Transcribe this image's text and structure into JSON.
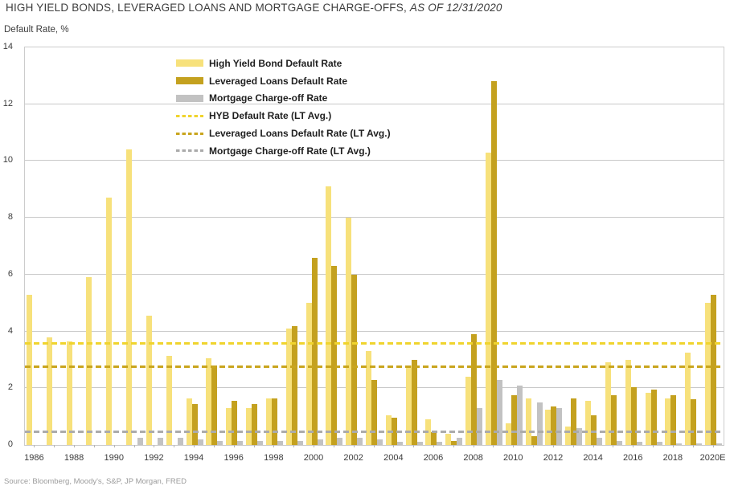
{
  "header": {
    "title_main": "HIGH YIELD BONDS, LEVERAGED LOANS AND MORTGAGE CHARGE-OFFS, ",
    "title_asof": "AS OF 12/31/2020"
  },
  "footer": {
    "source": "Source: Bloomberg, Moody's, S&P, JP Morgan, FRED"
  },
  "chart_data": {
    "type": "bar",
    "title": "HIGH YIELD BONDS, LEVERAGED LOANS AND MORTGAGE CHARGE-OFFS, AS OF 12/31/2020",
    "y_axis_title": "Default Rate, %",
    "ylim": [
      0,
      14
    ],
    "y_ticks": [
      0,
      2,
      4,
      6,
      8,
      10,
      12,
      14
    ],
    "grid": "horizontal",
    "legend_position": "top-left-inside",
    "x_tick_step": 2,
    "categories": [
      "1986",
      "1987",
      "1988",
      "1989",
      "1990",
      "1991",
      "1992",
      "1993",
      "1994",
      "1995",
      "1996",
      "1997",
      "1998",
      "1999",
      "2000",
      "2001",
      "2002",
      "2003",
      "2004",
      "2005",
      "2006",
      "2007",
      "2008",
      "2009",
      "2010",
      "2011",
      "2012",
      "2013",
      "2014",
      "2015",
      "2016",
      "2017",
      "2018",
      "2019",
      "2020E"
    ],
    "series": [
      {
        "name": "High Yield Bond Default Rate",
        "color": "#F7E17B",
        "values": [
          5.3,
          3.8,
          3.65,
          5.9,
          8.7,
          10.4,
          4.55,
          3.15,
          1.65,
          3.05,
          1.3,
          1.3,
          1.65,
          4.1,
          5.0,
          9.1,
          8.0,
          3.3,
          1.05,
          2.8,
          0.9,
          0.4,
          2.4,
          10.3,
          0.75,
          1.65,
          1.25,
          0.65,
          1.55,
          2.9,
          3.0,
          1.85,
          1.65,
          3.25,
          5.0
        ]
      },
      {
        "name": "Leveraged Loans Default Rate",
        "color": "#C4A11F",
        "values": [
          null,
          null,
          null,
          null,
          null,
          null,
          null,
          null,
          1.45,
          2.8,
          1.55,
          1.45,
          1.65,
          4.2,
          6.6,
          6.3,
          6.0,
          2.3,
          0.95,
          3.0,
          0.45,
          0.15,
          3.9,
          12.8,
          1.75,
          0.3,
          1.35,
          1.65,
          1.05,
          1.75,
          2.05,
          1.95,
          1.75,
          1.6,
          5.3
        ]
      },
      {
        "name": "Mortgage Charge-off Rate",
        "color": "#C2C2C2",
        "values": [
          null,
          null,
          null,
          null,
          null,
          0.25,
          0.25,
          0.25,
          0.2,
          0.15,
          0.15,
          0.15,
          0.15,
          0.15,
          0.2,
          0.25,
          0.25,
          0.2,
          0.1,
          0.1,
          0.1,
          0.25,
          1.3,
          2.3,
          2.1,
          1.5,
          1.3,
          0.6,
          0.25,
          0.15,
          0.1,
          0.1,
          0.05,
          0.05,
          0.05
        ]
      }
    ],
    "avg_lines": [
      {
        "name": "HYB Default Rate (LT Avg.)",
        "color": "#F0D42E",
        "value": 3.55
      },
      {
        "name": "Leveraged Loans Default Rate (LT Avg.)",
        "color": "#C9A51E",
        "value": 2.75
      },
      {
        "name": "Mortgage Charge-off Rate (LT Avg.)",
        "color": "#ABABAB",
        "value": 0.45
      }
    ]
  }
}
